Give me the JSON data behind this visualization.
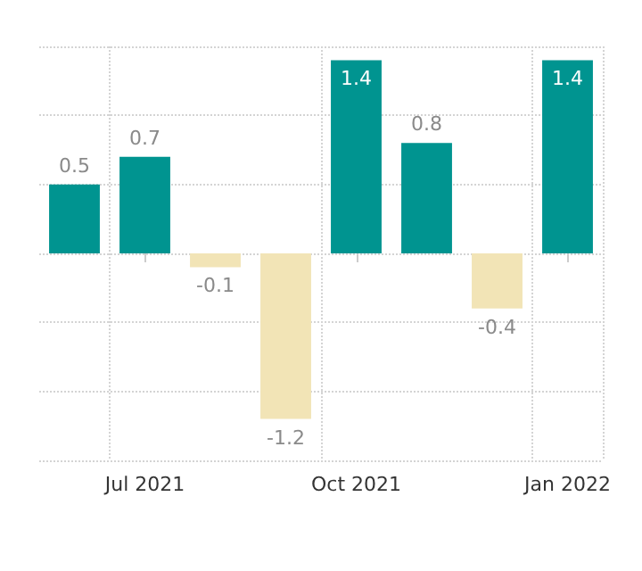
{
  "chart_data": {
    "type": "bar",
    "categories": [
      null,
      "Jul 2021",
      null,
      null,
      "Oct 2021",
      null,
      null,
      "Jan 2022"
    ],
    "values": [
      0.5,
      0.7,
      -0.1,
      -1.2,
      1.4,
      0.8,
      -0.4,
      1.4
    ],
    "colors": [
      "#009490",
      "#009490",
      "#f2e4b6",
      "#f2e4b6",
      "#009490",
      "#009490",
      "#f2e4b6",
      "#009490"
    ],
    "ylim": [
      -1.5,
      1.5
    ],
    "yticks": [
      {
        "value": -1.5,
        "label": null
      },
      {
        "value": -1,
        "label": null
      },
      {
        "value": -0.5,
        "label": null
      },
      {
        "value": 0,
        "label": null
      },
      {
        "value": 0.5,
        "label": null
      },
      {
        "value": 1,
        "label": null
      },
      {
        "value": 1.5,
        "label": null
      }
    ],
    "tick_labels": "x",
    "data_labels": true,
    "grid": true
  }
}
